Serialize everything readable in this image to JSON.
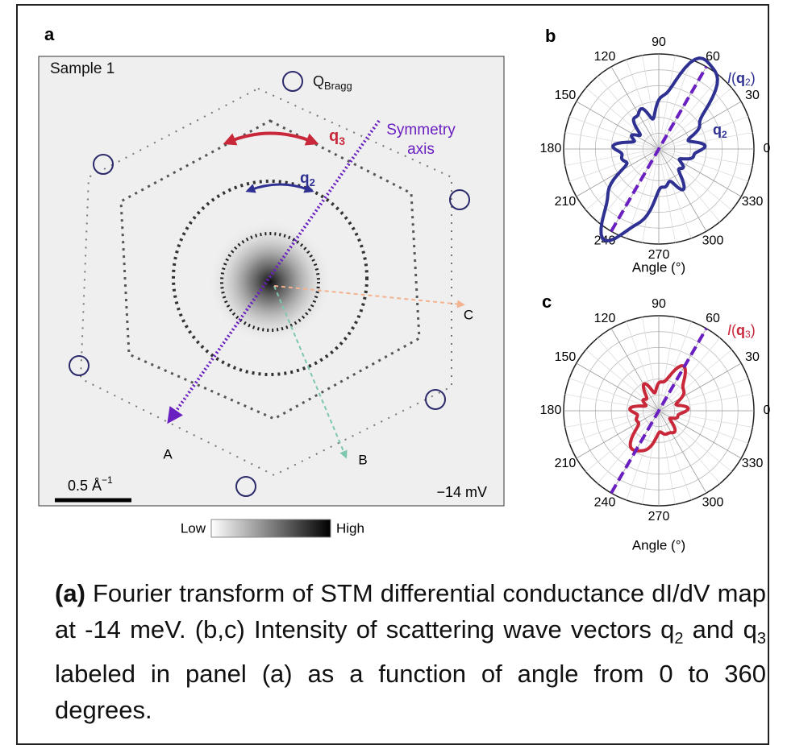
{
  "panel_a": {
    "label": "a",
    "sample": "Sample 1",
    "bragg": {
      "main": "Q",
      "sub": "Bragg"
    },
    "q3": {
      "main": "q",
      "sub": "3"
    },
    "symmetry_axis": [
      "Symmetry",
      "axis"
    ],
    "q2": {
      "main": "q",
      "sub": "2"
    },
    "points": [
      "A",
      "B",
      "C"
    ],
    "scale_bar": {
      "main": "0.5 Å",
      "sup": "−1"
    },
    "bias": "−14 mV",
    "colorbar": {
      "low": "Low",
      "high": "High"
    }
  },
  "panel_b": {
    "label": "b",
    "angles": [
      0,
      30,
      60,
      90,
      120,
      150,
      180,
      210,
      240,
      270,
      300,
      330
    ],
    "axis_label": "Angle (°)",
    "legend": {
      "italic": "I",
      "open": "(",
      "bold": "q",
      "sub": "2",
      "close": ")"
    },
    "curve_label": {
      "main": "q",
      "sub": "2"
    }
  },
  "panel_c": {
    "label": "c",
    "angles": [
      0,
      30,
      60,
      90,
      120,
      150,
      180,
      210,
      240,
      270,
      300,
      330
    ],
    "axis_label": "Angle (°)",
    "legend": {
      "italic": "I",
      "open": "(",
      "bold": "q",
      "sub": "3",
      "close": ")"
    }
  },
  "caption": {
    "bold": "(a)",
    "part1": " Fourier transform of STM differential conductance dI/dV map at -14 meV. (b,c) Intensity of scattering wave vectors q",
    "sub1": "2",
    "part2": " and q",
    "sub2": "3",
    "part3": " labeled in panel (a) as a function of angle from 0 to 360 degrees."
  }
}
